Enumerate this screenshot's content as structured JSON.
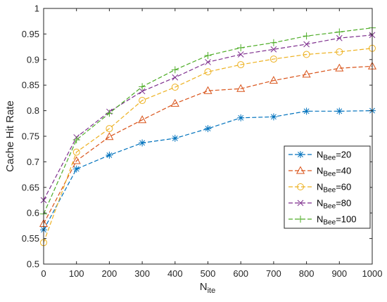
{
  "chart_data": {
    "type": "line",
    "xlabel": {
      "base": "N",
      "sub": "ite"
    },
    "ylabel": "Cache Hit Rate",
    "xlim": [
      0,
      1000
    ],
    "ylim": [
      0.5,
      1
    ],
    "xticks": [
      0,
      100,
      200,
      300,
      400,
      500,
      600,
      700,
      800,
      900,
      1000
    ],
    "yticks": [
      0.5,
      0.55,
      0.6,
      0.65,
      0.7,
      0.75,
      0.8,
      0.85,
      0.9,
      0.95,
      1
    ],
    "ytick_labels": [
      "0.5",
      "0.55",
      "0.6",
      "0.65",
      "0.7",
      "0.75",
      "0.8",
      "0.85",
      "0.9",
      "0.95",
      "1"
    ],
    "grid": false,
    "legend_position": "lower-right",
    "x": [
      0,
      100,
      200,
      300,
      400,
      500,
      600,
      700,
      800,
      900,
      1000
    ],
    "series": [
      {
        "name": "N_Bee=20",
        "legend": {
          "base": "N",
          "sub": "Bee",
          "suffix": "=20"
        },
        "color": "#0072BD",
        "marker": "asterisk",
        "values": [
          0.567,
          0.686,
          0.713,
          0.737,
          0.746,
          0.765,
          0.786,
          0.788,
          0.799,
          0.799,
          0.8
        ]
      },
      {
        "name": "N_Bee=40",
        "legend": {
          "base": "N",
          "sub": "Bee",
          "suffix": "=40"
        },
        "color": "#D95319",
        "marker": "triangle",
        "values": [
          0.579,
          0.702,
          0.749,
          0.782,
          0.814,
          0.839,
          0.843,
          0.859,
          0.871,
          0.883,
          0.887
        ]
      },
      {
        "name": "N_Bee=60",
        "legend": {
          "base": "N",
          "sub": "Bee",
          "suffix": "=60"
        },
        "color": "#EDB120",
        "marker": "circle",
        "values": [
          0.542,
          0.719,
          0.765,
          0.82,
          0.846,
          0.876,
          0.89,
          0.901,
          0.91,
          0.915,
          0.922
        ]
      },
      {
        "name": "N_Bee=80",
        "legend": {
          "base": "N",
          "sub": "Bee",
          "suffix": "=80"
        },
        "color": "#7E2F8E",
        "marker": "x",
        "values": [
          0.625,
          0.748,
          0.798,
          0.838,
          0.865,
          0.895,
          0.91,
          0.92,
          0.93,
          0.942,
          0.948
        ]
      },
      {
        "name": "N_Bee=100",
        "legend": {
          "base": "N",
          "sub": "Bee",
          "suffix": "=100"
        },
        "color": "#4DAC26",
        "marker": "plus",
        "values": [
          0.598,
          0.743,
          0.795,
          0.847,
          0.88,
          0.908,
          0.923,
          0.933,
          0.946,
          0.954,
          0.962
        ]
      }
    ]
  }
}
